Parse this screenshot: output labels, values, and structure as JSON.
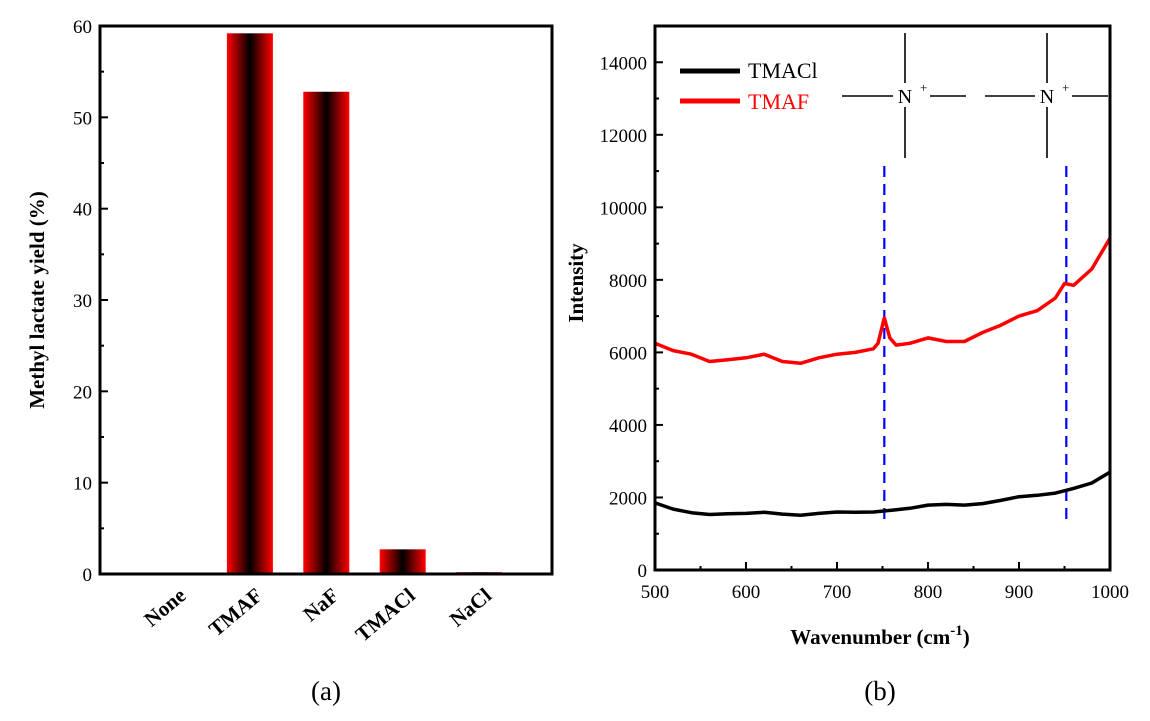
{
  "chart_data": [
    {
      "type": "bar",
      "categories": [
        "None",
        "TMAF",
        "NaF",
        "TMACl",
        "NaCl"
      ],
      "values": [
        0,
        59.2,
        52.8,
        2.7,
        0.2
      ],
      "ylabel": "Methyl lactate yield (%)",
      "xlabel": "",
      "ylim": [
        0,
        60
      ],
      "yticks": [
        0,
        10,
        20,
        30,
        40,
        50,
        60
      ],
      "panel_label": "(a)",
      "bar_colors": {
        "edge": "#ff0000",
        "center": "#000000"
      },
      "grid": false
    },
    {
      "type": "line",
      "xlabel_main": "Wavenumber (cm",
      "xlabel_sup": "-1",
      "xlabel_close": ")",
      "ylabel": "Intensity",
      "xlim": [
        500,
        1000
      ],
      "ylim": [
        0,
        15000
      ],
      "xticks": [
        500,
        600,
        700,
        800,
        900,
        1000
      ],
      "yticks": [
        0,
        2000,
        4000,
        6000,
        8000,
        10000,
        12000,
        14000
      ],
      "panel_label": "(b)",
      "legend_position": "top-left",
      "grid": false,
      "series": [
        {
          "name": "TMACl",
          "color": "#000000",
          "x": [
            500,
            520,
            540,
            560,
            580,
            600,
            620,
            640,
            660,
            680,
            700,
            720,
            740,
            760,
            780,
            800,
            820,
            840,
            860,
            880,
            900,
            920,
            940,
            960,
            980,
            1000
          ],
          "y": [
            1850,
            1680,
            1580,
            1530,
            1550,
            1560,
            1590,
            1540,
            1510,
            1560,
            1600,
            1590,
            1600,
            1650,
            1700,
            1790,
            1810,
            1790,
            1830,
            1920,
            2020,
            2060,
            2120,
            2250,
            2400,
            2700
          ]
        },
        {
          "name": "TMAF",
          "color": "#ff0000",
          "x": [
            500,
            520,
            540,
            560,
            580,
            600,
            620,
            640,
            660,
            680,
            700,
            720,
            740,
            745,
            752,
            758,
            765,
            780,
            800,
            820,
            840,
            860,
            880,
            900,
            920,
            940,
            950,
            960,
            980,
            1000
          ],
          "y": [
            6250,
            6050,
            5950,
            5750,
            5800,
            5850,
            5950,
            5750,
            5700,
            5850,
            5950,
            6000,
            6100,
            6250,
            6950,
            6400,
            6200,
            6250,
            6400,
            6300,
            6300,
            6550,
            6750,
            7000,
            7150,
            7500,
            7900,
            7850,
            8300,
            9150
          ]
        }
      ],
      "annotations": {
        "dashed_line_x": [
          752,
          952
        ],
        "dashed_color": "#0000ff",
        "structure_label": "N",
        "structure_charge": "+"
      }
    }
  ]
}
